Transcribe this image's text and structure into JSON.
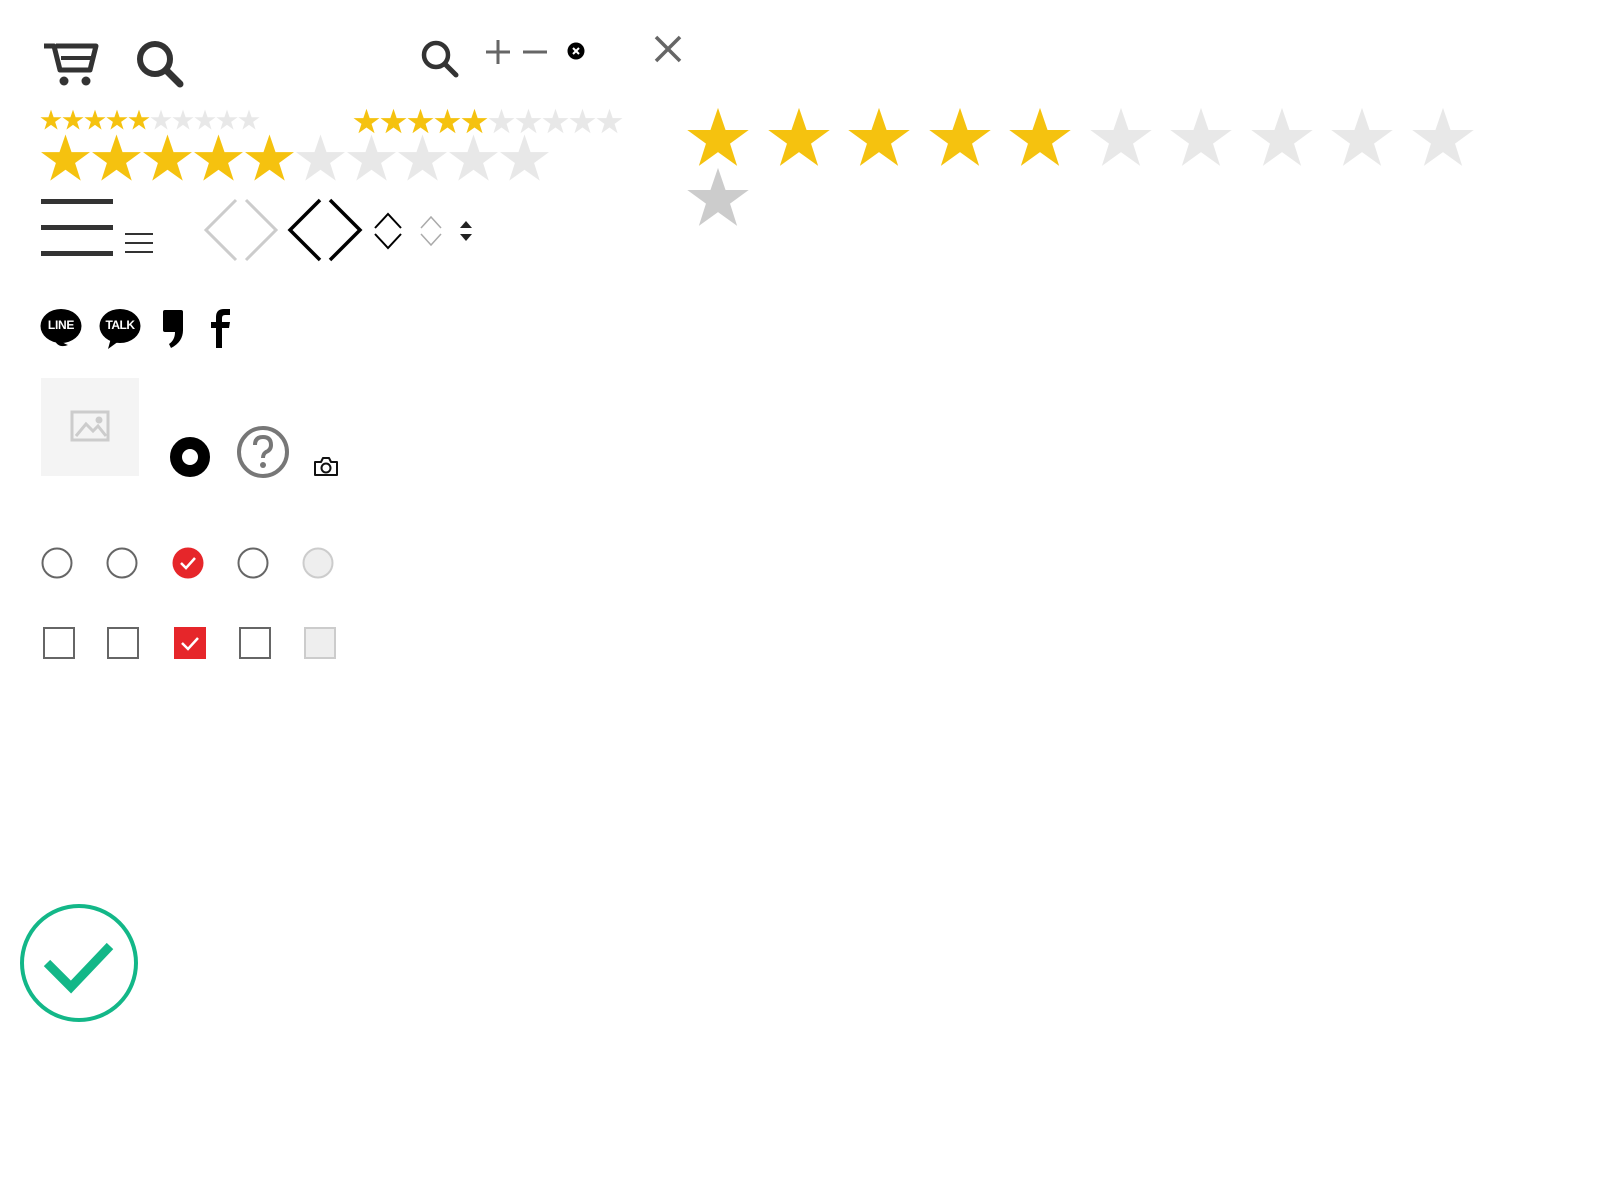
{
  "icons": {
    "cart": "cart-icon",
    "search": "search-icon",
    "plus": "plus-icon",
    "minus": "minus-icon",
    "clear": "clear-icon",
    "close": "close-icon",
    "menu": "hamburger-menu-icon",
    "prev_next": "chevron-left-right-icon",
    "updown": "chevron-up-down-icon",
    "sort": "sort-arrows-icon",
    "image_placeholder": "image-placeholder-icon",
    "ring": "ring-icon",
    "help": "question-icon",
    "camera": "camera-icon",
    "success": "check-circle-icon"
  },
  "share": {
    "line_label": "LINE",
    "talk_label": "TALK"
  },
  "ratings": [
    {
      "name": "rating-small-a",
      "value": 5,
      "max": 10
    },
    {
      "name": "rating-small-b",
      "value": 5,
      "max": 10
    },
    {
      "name": "rating-large",
      "value": 5,
      "max": 10
    },
    {
      "name": "rating-medium",
      "value": 5,
      "max": 10
    }
  ],
  "radios": [
    {
      "state": "unchecked"
    },
    {
      "state": "unchecked"
    },
    {
      "state": "checked"
    },
    {
      "state": "unchecked"
    },
    {
      "state": "disabled"
    }
  ],
  "checkboxes": [
    {
      "state": "unchecked"
    },
    {
      "state": "unchecked"
    },
    {
      "state": "checked"
    },
    {
      "state": "unchecked"
    },
    {
      "state": "disabled"
    }
  ],
  "colors": {
    "star_on": "#F5C20F",
    "star_off": "#E8E8E8",
    "star_single": "#CCCCCC",
    "accent_red": "#E6262A",
    "success_green": "#13B788",
    "icon_dark": "#333333",
    "icon_gray": "#666666"
  }
}
